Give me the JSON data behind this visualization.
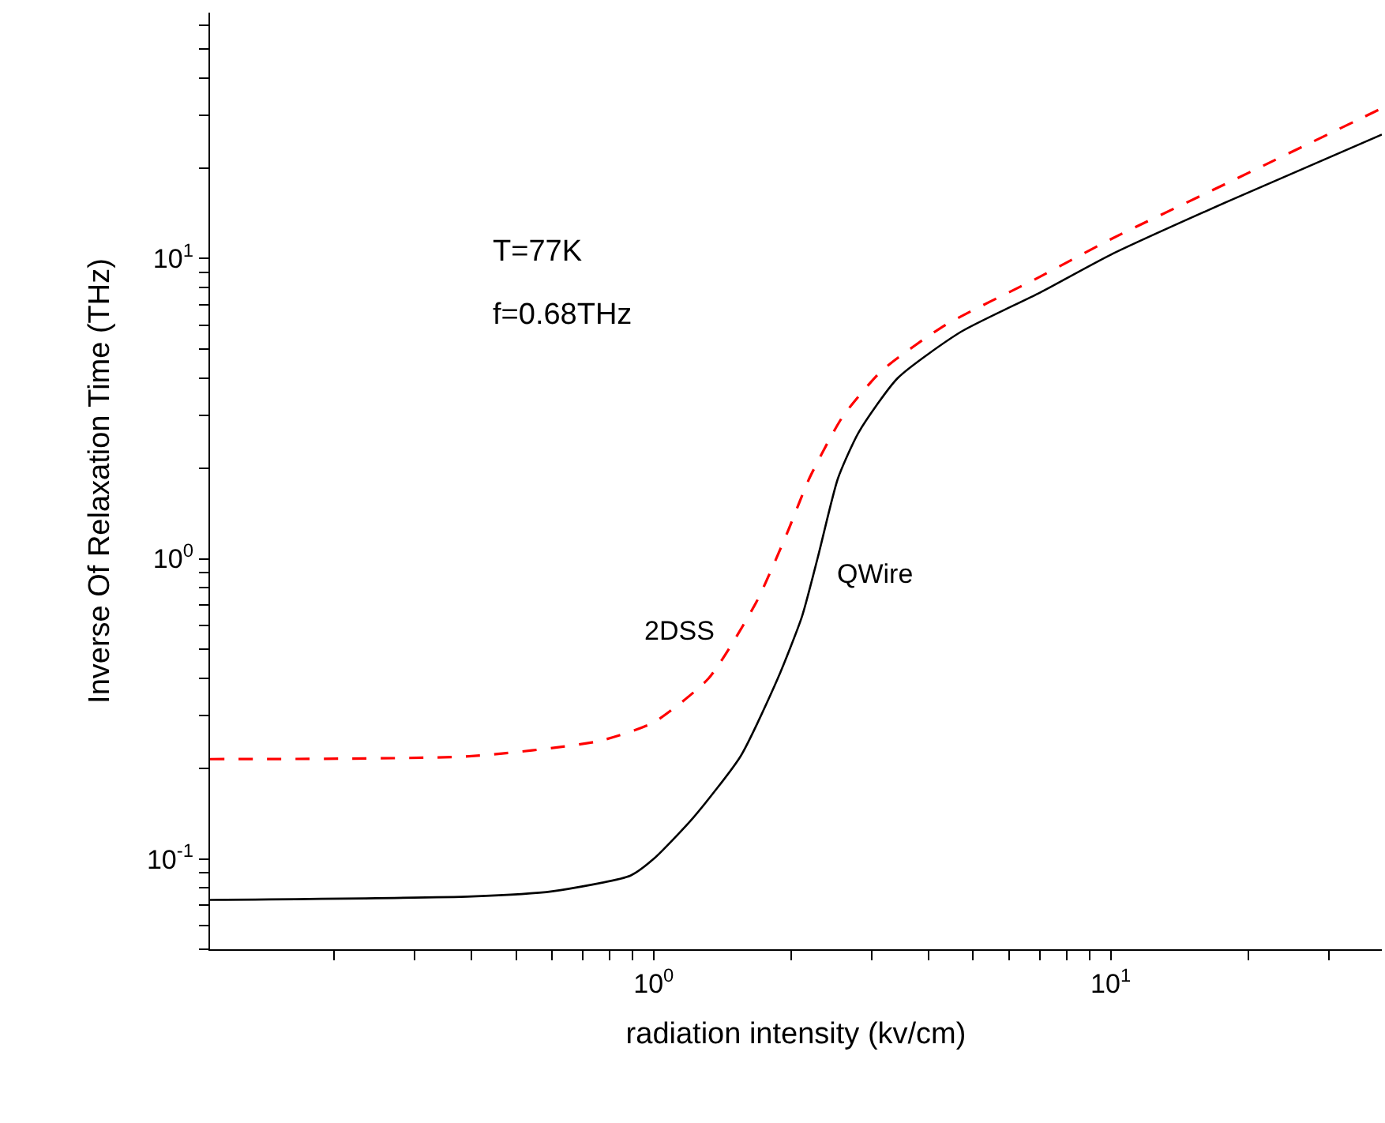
{
  "chart_data": {
    "type": "line",
    "xlabel": "radiation intensity (kv/cm)",
    "ylabel": "Inverse Of Relaxation Time (THz)",
    "annotations": [
      "T=77K",
      "f=0.68THz"
    ],
    "log": "xy",
    "legend": false,
    "marker": "none",
    "xlim": [
      0.107,
      39.2
    ],
    "ylim": [
      0.05,
      66
    ],
    "xticks": [
      {
        "value": 0.2,
        "label": null
      },
      {
        "value": 0.3,
        "label": null
      },
      {
        "value": 0.4,
        "label": null
      },
      {
        "value": 0.5,
        "label": null
      },
      {
        "value": 0.6,
        "label": null
      },
      {
        "value": 0.7,
        "label": null
      },
      {
        "value": 0.8,
        "label": null
      },
      {
        "value": 0.9,
        "label": null
      },
      {
        "value": 1,
        "label": "10$^{0}$"
      },
      {
        "value": 2,
        "label": null
      },
      {
        "value": 3,
        "label": null
      },
      {
        "value": 4,
        "label": null
      },
      {
        "value": 5,
        "label": null
      },
      {
        "value": 6,
        "label": null
      },
      {
        "value": 7,
        "label": null
      },
      {
        "value": 8,
        "label": null
      },
      {
        "value": 9,
        "label": null
      },
      {
        "value": 10,
        "label": "10$^{1}$"
      },
      {
        "value": 20,
        "label": null
      },
      {
        "value": 30,
        "label": null
      }
    ],
    "yticks": [
      {
        "value": 0.05,
        "label": null
      },
      {
        "value": 0.06,
        "label": null
      },
      {
        "value": 0.07,
        "label": null
      },
      {
        "value": 0.08,
        "label": null
      },
      {
        "value": 0.09,
        "label": null
      },
      {
        "value": 0.1,
        "label": "10$^{-1}$"
      },
      {
        "value": 0.2,
        "label": null
      },
      {
        "value": 0.3,
        "label": null
      },
      {
        "value": 0.4,
        "label": null
      },
      {
        "value": 0.5,
        "label": null
      },
      {
        "value": 0.6,
        "label": null
      },
      {
        "value": 0.7,
        "label": null
      },
      {
        "value": 0.8,
        "label": null
      },
      {
        "value": 0.9,
        "label": null
      },
      {
        "value": 1,
        "label": "10$^{0}$"
      },
      {
        "value": 2,
        "label": null
      },
      {
        "value": 3,
        "label": null
      },
      {
        "value": 4,
        "label": null
      },
      {
        "value": 5,
        "label": null
      },
      {
        "value": 6,
        "label": null
      },
      {
        "value": 7,
        "label": null
      },
      {
        "value": 8,
        "label": null
      },
      {
        "value": 9,
        "label": null
      },
      {
        "value": 10,
        "label": "10$^{1}$"
      },
      {
        "value": 20,
        "label": null
      },
      {
        "value": 30,
        "label": null
      },
      {
        "value": 40,
        "label": null
      },
      {
        "value": 50,
        "label": null
      },
      {
        "value": 60,
        "label": null
      }
    ],
    "series": [
      {
        "name": "2DSS",
        "color": "#ff0000",
        "line_style": "dashed",
        "x": [
          0.107,
          0.4,
          0.76,
          1.0,
          1.32,
          1.68,
          1.96,
          2.19,
          2.59,
          3.16,
          4.34,
          6.9,
          10,
          18.2,
          39.2
        ],
        "values": [
          0.215,
          0.22,
          0.247,
          0.285,
          0.4,
          0.72,
          1.22,
          1.85,
          2.97,
          4.24,
          6.0,
          8.6,
          11.6,
          18,
          31.7
        ]
      },
      {
        "name": "QWire",
        "color": "#000000",
        "line_style": "solid",
        "x": [
          0.107,
          0.4,
          0.6,
          0.89,
          1.0,
          1.22,
          1.55,
          1.87,
          2.11,
          2.29,
          2.53,
          2.81,
          3.42,
          4.7,
          7.0,
          10,
          18.2,
          39.2
        ],
        "values": [
          0.073,
          0.075,
          0.078,
          0.088,
          0.1,
          0.137,
          0.22,
          0.4,
          0.64,
          1.02,
          1.85,
          2.64,
          4.0,
          5.7,
          7.7,
          10.3,
          15.6,
          25.9
        ]
      }
    ]
  }
}
